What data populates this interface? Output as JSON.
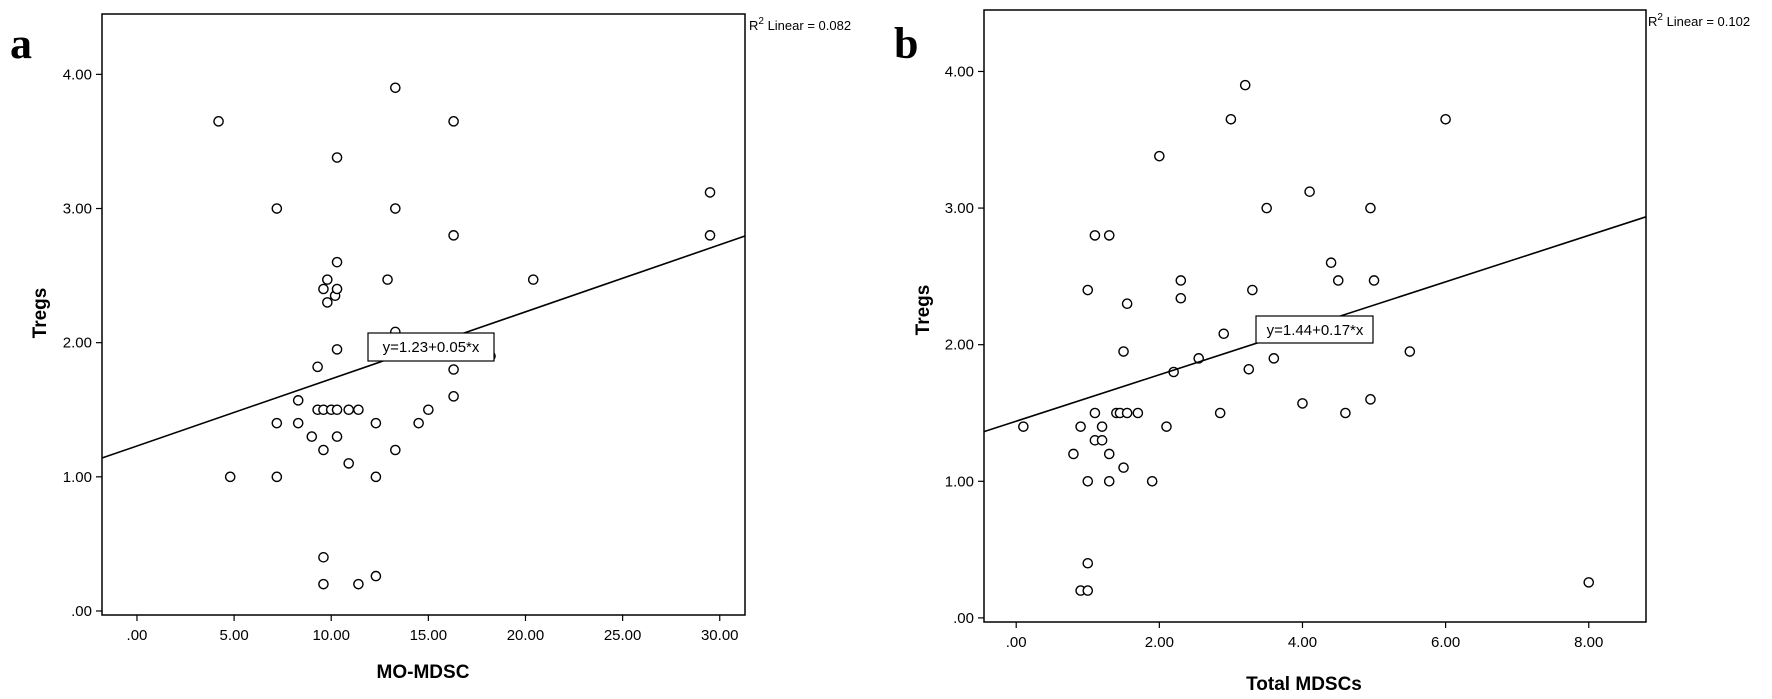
{
  "chart_data": [
    {
      "type": "scatter",
      "panel": "a",
      "xlabel": "MO-MDSC",
      "ylabel": "Tregs",
      "xlim": [
        -1.8,
        31.3
      ],
      "ylim": [
        -0.03,
        4.45
      ],
      "xticks": [
        0,
        5,
        10,
        15,
        20,
        25,
        30
      ],
      "xtick_labels": [
        ".00",
        "5.00",
        "10.00",
        "15.00",
        "20.00",
        "25.00",
        "30.00"
      ],
      "yticks": [
        0,
        1,
        2,
        3,
        4
      ],
      "ytick_labels": [
        ".00",
        "1.00",
        "2.00",
        "3.00",
        "4.00"
      ],
      "r2_label": "Linear = 0.082",
      "equation": "y=1.23+0.05*x",
      "fit": {
        "intercept": 1.23,
        "slope": 0.05
      },
      "points": [
        [
          4.2,
          3.65
        ],
        [
          4.8,
          1.0
        ],
        [
          7.2,
          3.0
        ],
        [
          7.2,
          1.4
        ],
        [
          7.2,
          1.0
        ],
        [
          8.3,
          1.57
        ],
        [
          8.3,
          1.4
        ],
        [
          9.0,
          1.3
        ],
        [
          9.3,
          1.82
        ],
        [
          9.3,
          1.5
        ],
        [
          9.6,
          2.4
        ],
        [
          9.6,
          1.5
        ],
        [
          9.6,
          1.2
        ],
        [
          9.6,
          0.4
        ],
        [
          9.6,
          0.2
        ],
        [
          9.8,
          2.47
        ],
        [
          9.8,
          2.3
        ],
        [
          10.0,
          1.5
        ],
        [
          10.2,
          2.35
        ],
        [
          10.3,
          2.6
        ],
        [
          10.3,
          2.4
        ],
        [
          10.3,
          1.95
        ],
        [
          10.3,
          1.5
        ],
        [
          10.3,
          1.3
        ],
        [
          10.3,
          3.38
        ],
        [
          10.9,
          1.5
        ],
        [
          10.9,
          1.1
        ],
        [
          11.4,
          1.5
        ],
        [
          11.4,
          0.2
        ],
        [
          12.3,
          1.4
        ],
        [
          12.3,
          1.0
        ],
        [
          12.3,
          0.26
        ],
        [
          12.9,
          2.47
        ],
        [
          12.9,
          1.9
        ],
        [
          13.3,
          3.9
        ],
        [
          13.3,
          3.0
        ],
        [
          13.3,
          2.08
        ],
        [
          13.3,
          1.2
        ],
        [
          14.5,
          1.4
        ],
        [
          15.0,
          1.5
        ],
        [
          16.3,
          3.65
        ],
        [
          16.3,
          2.8
        ],
        [
          16.3,
          1.8
        ],
        [
          16.3,
          1.6
        ],
        [
          18.2,
          1.9
        ],
        [
          20.4,
          2.47
        ],
        [
          29.5,
          3.12
        ],
        [
          29.5,
          2.8
        ]
      ]
    },
    {
      "type": "scatter",
      "panel": "b",
      "xlabel": "Total MDSCs",
      "ylabel": "Tregs",
      "xlim": [
        -0.45,
        8.8
      ],
      "ylim": [
        -0.03,
        4.45
      ],
      "xticks": [
        0,
        2,
        4,
        6,
        8
      ],
      "xtick_labels": [
        ".00",
        "2.00",
        "4.00",
        "6.00",
        "8.00"
      ],
      "yticks": [
        0,
        1,
        2,
        3,
        4
      ],
      "ytick_labels": [
        ".00",
        "1.00",
        "2.00",
        "3.00",
        "4.00"
      ],
      "r2_label": "Linear = 0.102",
      "equation": "y=1.44+0.17*x",
      "fit": {
        "intercept": 1.44,
        "slope": 0.17
      },
      "points": [
        [
          0.1,
          1.4
        ],
        [
          0.8,
          1.2
        ],
        [
          0.9,
          1.4
        ],
        [
          0.9,
          0.2
        ],
        [
          1.0,
          2.4
        ],
        [
          1.0,
          1.0
        ],
        [
          1.0,
          0.4
        ],
        [
          1.0,
          0.2
        ],
        [
          1.1,
          2.8
        ],
        [
          1.1,
          1.5
        ],
        [
          1.1,
          1.3
        ],
        [
          1.2,
          1.4
        ],
        [
          1.2,
          1.3
        ],
        [
          1.3,
          1.2
        ],
        [
          1.3,
          1.0
        ],
        [
          1.3,
          2.8
        ],
        [
          1.4,
          1.5
        ],
        [
          1.45,
          1.5
        ],
        [
          1.5,
          1.95
        ],
        [
          1.5,
          1.1
        ],
        [
          1.55,
          2.3
        ],
        [
          1.55,
          1.5
        ],
        [
          1.7,
          1.5
        ],
        [
          1.9,
          1.0
        ],
        [
          2.0,
          3.38
        ],
        [
          2.1,
          1.4
        ],
        [
          2.2,
          1.8
        ],
        [
          2.3,
          2.47
        ],
        [
          2.3,
          2.34
        ],
        [
          2.55,
          1.9
        ],
        [
          2.85,
          1.5
        ],
        [
          2.9,
          2.08
        ],
        [
          3.0,
          3.65
        ],
        [
          3.2,
          3.9
        ],
        [
          3.25,
          1.82
        ],
        [
          3.3,
          2.4
        ],
        [
          3.5,
          3.0
        ],
        [
          3.6,
          1.9
        ],
        [
          4.0,
          1.57
        ],
        [
          4.1,
          3.12
        ],
        [
          4.4,
          2.6
        ],
        [
          4.5,
          2.47
        ],
        [
          4.6,
          1.5
        ],
        [
          4.95,
          3.0
        ],
        [
          4.95,
          1.6
        ],
        [
          5.0,
          2.47
        ],
        [
          5.5,
          1.95
        ],
        [
          6.0,
          3.65
        ],
        [
          8.0,
          0.26
        ]
      ]
    }
  ]
}
